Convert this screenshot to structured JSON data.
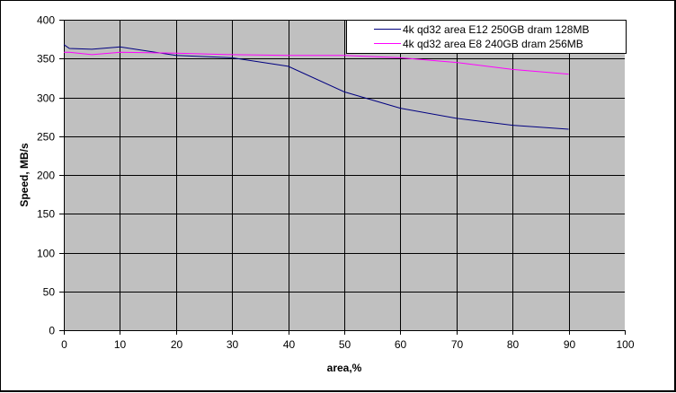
{
  "chart_data": {
    "type": "line",
    "title": "",
    "xlabel": "area,%",
    "ylabel": "Speed, MB/s",
    "xlim": [
      0,
      100
    ],
    "ylim": [
      0,
      400
    ],
    "x_ticks": [
      0,
      10,
      20,
      30,
      40,
      50,
      60,
      70,
      80,
      90,
      100
    ],
    "y_ticks": [
      0,
      50,
      100,
      150,
      200,
      250,
      300,
      350,
      400
    ],
    "grid": true,
    "plot_background": "#c0c0c0",
    "legend_position": "top-right inside",
    "x": [
      0,
      1,
      5,
      10,
      20,
      30,
      40,
      50,
      60,
      70,
      80,
      90
    ],
    "series": [
      {
        "name": "4k qd32 area E12 250GB dram 128MB",
        "color": "#000080",
        "values": [
          368,
          363,
          362,
          365,
          354,
          351,
          340,
          307,
          286,
          273,
          264,
          259
        ]
      },
      {
        "name": "4k qd32 area E8 240GB dram 256MB",
        "color": "#ff00ff",
        "values": [
          358,
          358,
          355,
          358,
          357,
          355,
          354,
          354,
          351,
          345,
          336,
          330
        ]
      }
    ]
  }
}
